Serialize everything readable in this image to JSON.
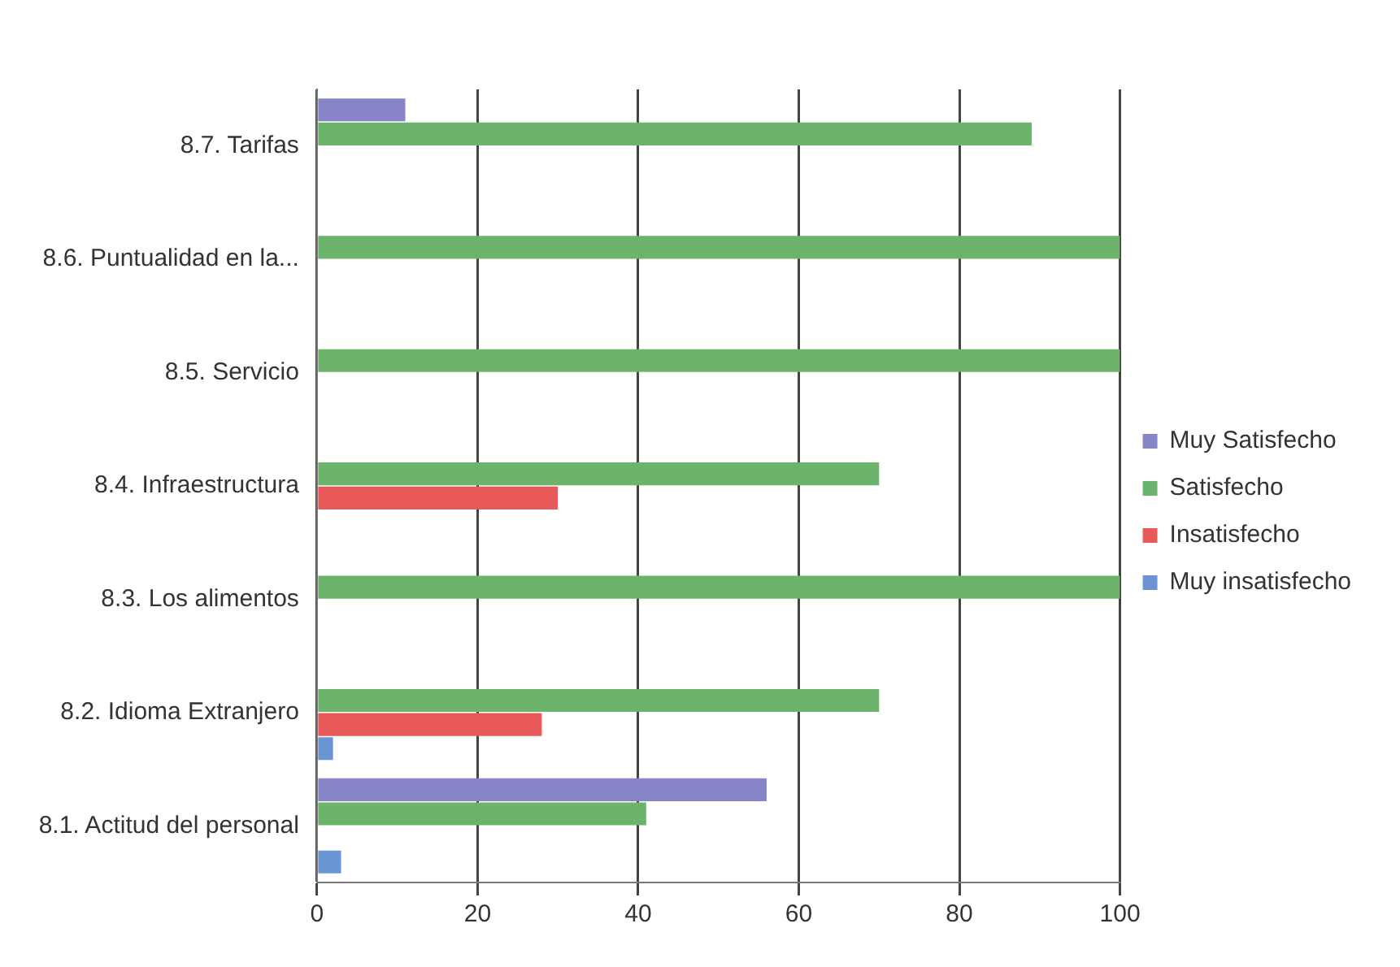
{
  "chart_data": {
    "type": "bar",
    "orientation": "horizontal",
    "categories": [
      "8.7. Tarifas",
      "8.6. Puntualidad en la...",
      "8.5. Servicio",
      "8.4. Infraestructura",
      "8.3. Los alimentos",
      "8.2. Idioma Extranjero",
      "8.1. Actitud del personal"
    ],
    "series": [
      {
        "name": "Muy Satisfecho",
        "color": "#8585c8",
        "values": [
          11,
          0,
          0,
          0,
          0,
          0,
          56
        ]
      },
      {
        "name": "Satisfecho",
        "color": "#6cb46c",
        "values": [
          89,
          100,
          100,
          70,
          100,
          70,
          41
        ]
      },
      {
        "name": "Insatisfecho",
        "color": "#e85a5a",
        "values": [
          0,
          0,
          0,
          30,
          0,
          28,
          0
        ]
      },
      {
        "name": "Muy insatisfecho",
        "color": "#6a94d4",
        "values": [
          0,
          0,
          0,
          0,
          0,
          2,
          3
        ]
      }
    ],
    "xlim": [
      0,
      100
    ],
    "xticks": [
      0,
      20,
      40,
      60,
      80,
      100
    ],
    "grid": "x",
    "legend": "right"
  }
}
